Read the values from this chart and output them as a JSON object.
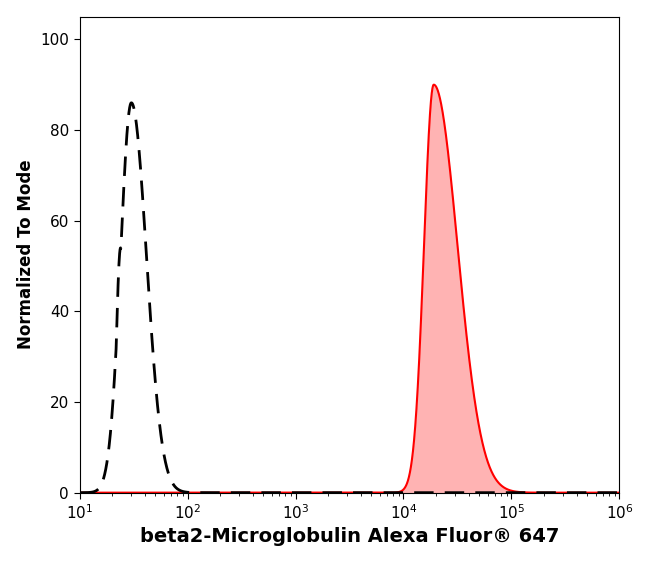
{
  "title": "",
  "xlabel": "beta2-Microglobulin Alexa Fluor® 647",
  "ylabel": "Normalized To Mode",
  "xlim_log": [
    1,
    6
  ],
  "ylim": [
    0,
    105
  ],
  "yticks": [
    0,
    20,
    40,
    60,
    80,
    100
  ],
  "dashed_color": "#000000",
  "solid_color": "#ff0000",
  "fill_color": "#ffb3b3",
  "background_color": "#ffffff",
  "xlabel_fontsize": 14,
  "ylabel_fontsize": 12,
  "tick_fontsize": 11,
  "dashed_peak_log": 1.48,
  "dashed_peak_y": 86,
  "solid_peak_log": 4.28,
  "solid_peak_y": 90
}
